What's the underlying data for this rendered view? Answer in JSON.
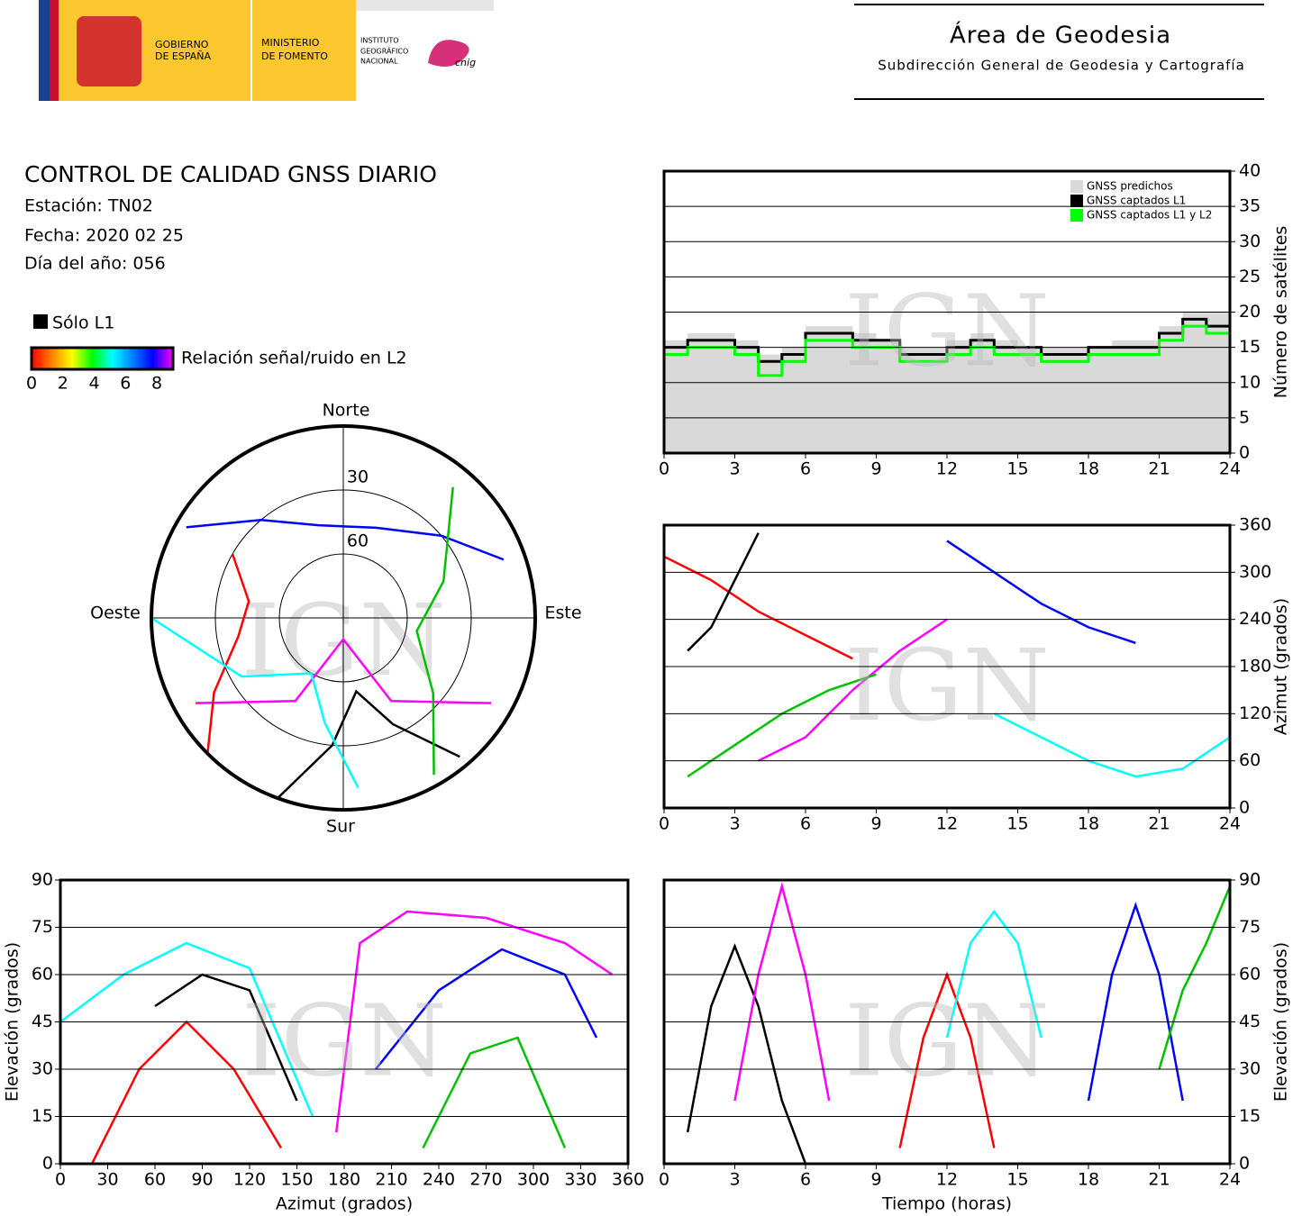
{
  "header": {
    "gobierno": [
      "GOBIERNO",
      "DE ESPAÑA"
    ],
    "ministerio": [
      "MINISTERIO",
      "DE FOMENTO"
    ],
    "instituto": [
      "INSTITUTO",
      "GEOGRÁFICO",
      "NACIONAL"
    ],
    "cnig": "cnig",
    "title": "Área de Geodesia",
    "subtitle": "Subdirección General de Geodesia y Cartografía"
  },
  "report": {
    "title": "CONTROL DE CALIDAD GNSS DIARIO",
    "station": "Estación: TN02",
    "date": "Fecha: 2020 02 25",
    "doy": "Día del año: 056"
  },
  "legend": {
    "l1": "Sólo L1",
    "snr": "Relación señal/ruido en L2",
    "ticks": [
      0,
      2,
      4,
      6,
      8
    ],
    "colors": [
      "#ff0000",
      "#ff8000",
      "#ffff00",
      "#00ff00",
      "#00ffff",
      "#0080ff",
      "#0000ff",
      "#ff00ff"
    ]
  },
  "watermark": "IGN",
  "chart_data": [
    {
      "type": "polar",
      "labels": {
        "north": "Norte",
        "south": "Sur",
        "east": "Este",
        "west": "Oeste"
      },
      "rlim": [
        0,
        90
      ],
      "rticks": [
        30,
        60
      ],
      "series": [
        {
          "color": "#ff00ff",
          "azimuth": [
            120,
            150,
            180,
            210,
            240
          ],
          "elevation": [
            10,
            45,
            80,
            45,
            10
          ]
        },
        {
          "color": "#ff0000",
          "azimuth": [
            300,
            280,
            260,
            240,
            225
          ],
          "elevation": [
            30,
            45,
            40,
            20,
            0
          ]
        },
        {
          "color": "#000000",
          "azimuth": [
            200,
            185,
            170,
            155,
            140
          ],
          "elevation": [
            0,
            30,
            55,
            35,
            5
          ]
        },
        {
          "color": "#0000ff",
          "azimuth": [
            300,
            320,
            345,
            20,
            50,
            70
          ],
          "elevation": [
            5,
            30,
            45,
            45,
            30,
            10
          ]
        },
        {
          "color": "#00c000",
          "azimuth": [
            40,
            70,
            100,
            130,
            150
          ],
          "elevation": [
            10,
            40,
            55,
            35,
            5
          ]
        },
        {
          "color": "#00ffff",
          "azimuth": [
            270,
            240,
            210,
            190,
            175
          ],
          "elevation": [
            0,
            35,
            60,
            40,
            10
          ]
        }
      ]
    },
    {
      "type": "line",
      "step": true,
      "x": [
        0,
        1,
        2,
        3,
        4,
        5,
        6,
        7,
        8,
        9,
        10,
        11,
        12,
        13,
        14,
        15,
        16,
        17,
        18,
        19,
        20,
        21,
        22,
        23,
        24
      ],
      "xlim": [
        0,
        24
      ],
      "xticks": [
        0,
        3,
        6,
        9,
        12,
        15,
        18,
        21,
        24
      ],
      "ylim": [
        0,
        40
      ],
      "yticks": [
        0,
        5,
        10,
        15,
        20,
        25,
        30,
        35,
        40
      ],
      "ylabel": "Número de satélites",
      "yaxis": "right",
      "grid": true,
      "legend": "top-right",
      "series": [
        {
          "name": "GNSS predichos",
          "color": "#d9d9d9",
          "area": true,
          "values": [
            16,
            17,
            17,
            16,
            14,
            15,
            18,
            18,
            17,
            16,
            15,
            15,
            16,
            17,
            16,
            15,
            15,
            15,
            15,
            16,
            16,
            18,
            20,
            20,
            17
          ]
        },
        {
          "name": "GNSS captados L1",
          "color": "#000000",
          "values": [
            15,
            16,
            16,
            15,
            13,
            14,
            17,
            17,
            16,
            16,
            14,
            14,
            15,
            16,
            15,
            15,
            14,
            14,
            15,
            15,
            15,
            17,
            19,
            18,
            15
          ]
        },
        {
          "name": "GNSS captados L1 y L2",
          "color": "#00ff00",
          "values": [
            14,
            15,
            15,
            14,
            11,
            13,
            16,
            16,
            15,
            15,
            13,
            13,
            14,
            15,
            14,
            14,
            13,
            13,
            14,
            14,
            14,
            16,
            18,
            17,
            13
          ]
        }
      ]
    },
    {
      "type": "line",
      "xlim": [
        0,
        24
      ],
      "xticks": [
        0,
        3,
        6,
        9,
        12,
        15,
        18,
        21,
        24
      ],
      "ylim": [
        0,
        360
      ],
      "yticks": [
        0,
        60,
        120,
        180,
        240,
        300,
        360
      ],
      "ylabel": "Azimut (grados)",
      "yaxis": "right",
      "grid": true,
      "series": [
        {
          "color": "#ff0000",
          "x": [
            0,
            2,
            4,
            6,
            8
          ],
          "values": [
            320,
            290,
            250,
            220,
            190
          ]
        },
        {
          "color": "#ff00ff",
          "x": [
            4,
            6,
            8,
            10,
            12
          ],
          "values": [
            60,
            90,
            150,
            200,
            240
          ]
        },
        {
          "color": "#0000ff",
          "x": [
            12,
            14,
            16,
            18,
            20
          ],
          "values": [
            340,
            300,
            260,
            230,
            210
          ]
        },
        {
          "color": "#00c000",
          "x": [
            1,
            3,
            5,
            7,
            9
          ],
          "values": [
            40,
            80,
            120,
            150,
            170
          ]
        },
        {
          "color": "#000000",
          "x": [
            1,
            2,
            3,
            4
          ],
          "values": [
            200,
            230,
            290,
            350
          ]
        },
        {
          "color": "#00ffff",
          "x": [
            14,
            16,
            18,
            20,
            22,
            24
          ],
          "values": [
            120,
            90,
            60,
            40,
            50,
            90
          ]
        }
      ]
    },
    {
      "type": "line",
      "xlim": [
        0,
        360
      ],
      "xticks": [
        0,
        30,
        60,
        90,
        120,
        150,
        180,
        210,
        240,
        270,
        300,
        330,
        360
      ],
      "ylim": [
        0,
        90
      ],
      "yticks": [
        0,
        15,
        30,
        45,
        60,
        75,
        90
      ],
      "xlabel": "Azimut (grados)",
      "ylabel": "Elevación (grados)",
      "yaxis": "left",
      "grid": true,
      "series": [
        {
          "color": "#ff0000",
          "x": [
            20,
            50,
            80,
            110,
            140
          ],
          "values": [
            0,
            30,
            45,
            30,
            5
          ]
        },
        {
          "color": "#ff00ff",
          "x": [
            175,
            190,
            220,
            270,
            320,
            350
          ],
          "values": [
            10,
            70,
            80,
            78,
            70,
            60
          ]
        },
        {
          "color": "#000000",
          "x": [
            60,
            90,
            120,
            150
          ],
          "values": [
            50,
            60,
            55,
            20
          ]
        },
        {
          "color": "#0000ff",
          "x": [
            200,
            240,
            280,
            320,
            340
          ],
          "values": [
            30,
            55,
            68,
            60,
            40
          ]
        },
        {
          "color": "#00c000",
          "x": [
            230,
            260,
            290,
            320
          ],
          "values": [
            5,
            35,
            40,
            5
          ]
        },
        {
          "color": "#00ffff",
          "x": [
            0,
            40,
            80,
            120,
            160
          ],
          "values": [
            45,
            60,
            70,
            62,
            15
          ]
        }
      ]
    },
    {
      "type": "line",
      "xlim": [
        0,
        24
      ],
      "xticks": [
        0,
        3,
        6,
        9,
        12,
        15,
        18,
        21,
        24
      ],
      "ylim": [
        0,
        90
      ],
      "yticks": [
        0,
        15,
        30,
        45,
        60,
        75,
        90
      ],
      "xlabel": "Tiempo (horas)",
      "ylabel": "Elevación (grados)",
      "yaxis": "right",
      "grid": true,
      "series": [
        {
          "color": "#000000",
          "x": [
            1,
            2,
            3,
            4,
            5,
            6
          ],
          "values": [
            10,
            50,
            69,
            50,
            20,
            0
          ]
        },
        {
          "color": "#ff00ff",
          "x": [
            3,
            4,
            5,
            6,
            7
          ],
          "values": [
            20,
            60,
            88,
            60,
            20
          ]
        },
        {
          "color": "#ff0000",
          "x": [
            10,
            11,
            12,
            13,
            14
          ],
          "values": [
            5,
            40,
            60,
            40,
            5
          ]
        },
        {
          "color": "#0000ff",
          "x": [
            18,
            19,
            20,
            21,
            22
          ],
          "values": [
            20,
            60,
            82,
            60,
            20
          ]
        },
        {
          "color": "#00c000",
          "x": [
            21,
            22,
            23,
            24
          ],
          "values": [
            30,
            55,
            70,
            88
          ]
        },
        {
          "color": "#00ffff",
          "x": [
            12,
            13,
            14,
            15,
            16
          ],
          "values": [
            40,
            70,
            80,
            70,
            40
          ]
        }
      ]
    }
  ]
}
